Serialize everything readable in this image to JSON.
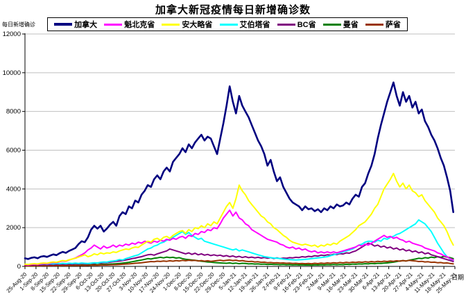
{
  "title": "加拿大新冠疫情每日新增确诊数",
  "axis": {
    "y_title": "每日新增确诊",
    "x_title": "日期"
  },
  "chart_data": {
    "type": "line",
    "title": "加拿大新冠疫情每日新增确诊数",
    "xlabel": "日期",
    "ylabel": "每日新增确诊",
    "ylim": [
      0,
      12000
    ],
    "y_ticks": [
      0,
      2000,
      4000,
      6000,
      8000,
      10000,
      12000
    ],
    "grid": "horizontal-gray",
    "legend_position": "top",
    "gridline_color": "#bfbfbf",
    "axis_color": "#000000",
    "sample_interval_days": 2,
    "total_days": 273,
    "x_tick_labels": [
      "25-Aug-20",
      "1-Sep-20",
      "8-Sep-20",
      "15-Sep-20",
      "22-Sep-20",
      "29-Sep-20",
      "6-Oct-20",
      "13-Oct-20",
      "20-Oct-20",
      "27-Oct-20",
      "3-Nov-20",
      "10-Nov-20",
      "17-Nov-20",
      "24-Nov-20",
      "1-Dec-20",
      "8-Dec-20",
      "15-Dec-20",
      "22-Dec-20",
      "29-Dec-20",
      "5-Jan-21",
      "12-Jan-21",
      "19-Jan-21",
      "26-Jan-21",
      "2-Feb-21",
      "9-Feb-21",
      "16-Feb-21",
      "23-Feb-21",
      "2-Mar-21",
      "9-Mar-21",
      "16-Mar-21",
      "23-Mar-21",
      "30-Mar-21",
      "6-Apr-21",
      "13-Apr-21",
      "20-Apr-21",
      "27-Apr-21",
      "4-May-21",
      "11-May-21",
      "18-May-21",
      "25-May-21"
    ],
    "series": [
      {
        "id": "canada",
        "name": "加拿大",
        "color": "#000080",
        "values": [
          420,
          380,
          440,
          470,
          420,
          500,
          530,
          490,
          560,
          620,
          580,
          680,
          750,
          700,
          800,
          870,
          950,
          1150,
          1300,
          1250,
          1500,
          1900,
          2100,
          1950,
          2100,
          1800,
          1950,
          2150,
          2300,
          2100,
          2600,
          2800,
          2700,
          3100,
          3000,
          3400,
          3300,
          3700,
          3900,
          4200,
          4100,
          4500,
          4700,
          4500,
          4900,
          5100,
          4900,
          5400,
          5600,
          5800,
          6100,
          5900,
          6300,
          6100,
          6400,
          6600,
          6800,
          6500,
          6700,
          6600,
          6200,
          5800,
          6600,
          7400,
          8300,
          9300,
          8500,
          7900,
          8800,
          8300,
          8000,
          7700,
          7300,
          6900,
          6500,
          6200,
          5800,
          5200,
          5500,
          4900,
          4400,
          4600,
          4100,
          3800,
          3500,
          3300,
          3200,
          3100,
          2900,
          3100,
          2950,
          3000,
          2850,
          2950,
          2800,
          3000,
          2900,
          3100,
          3000,
          3200,
          3100,
          3150,
          3300,
          3200,
          3500,
          3700,
          3600,
          4100,
          4300,
          4800,
          5200,
          5800,
          6600,
          7300,
          7900,
          8500,
          9000,
          9500,
          8800,
          8300,
          9000,
          8500,
          8800,
          8200,
          8500,
          7900,
          8100,
          7500,
          7200,
          6800,
          6500,
          6100,
          5600,
          5200,
          4600,
          3900,
          2800
        ]
      },
      {
        "id": "quebec",
        "name": "魁北克省",
        "color": "#ff00ff",
        "values": [
          90,
          75,
          100,
          115,
          95,
          130,
          150,
          135,
          170,
          200,
          190,
          240,
          280,
          260,
          330,
          380,
          430,
          520,
          600,
          700,
          850,
          950,
          1100,
          1000,
          900,
          1050,
          950,
          1000,
          1100,
          1000,
          1100,
          1050,
          1150,
          1100,
          1200,
          1150,
          1250,
          1200,
          1300,
          1250,
          1200,
          1300,
          1250,
          1350,
          1300,
          1400,
          1350,
          1450,
          1400,
          1500,
          1550,
          1450,
          1600,
          1550,
          1700,
          1650,
          1800,
          1750,
          1900,
          1850,
          2000,
          1950,
          2200,
          2500,
          2700,
          2900,
          2600,
          2800,
          2500,
          2400,
          2200,
          2100,
          1900,
          1800,
          1700,
          1600,
          1500,
          1400,
          1350,
          1300,
          1250,
          1150,
          1100,
          1000,
          950,
          1000,
          900,
          950,
          850,
          900,
          800,
          750,
          800,
          700,
          750,
          700,
          750,
          700,
          750,
          700,
          750,
          800,
          850,
          900,
          950,
          1000,
          1100,
          1050,
          1150,
          1100,
          1200,
          1300,
          1400,
          1500,
          1600,
          1500,
          1550,
          1450,
          1500,
          1400,
          1350,
          1250,
          1300,
          1200,
          1150,
          1100,
          1050,
          950,
          900,
          850,
          800,
          700,
          650,
          550,
          500,
          400,
          330
        ]
      },
      {
        "id": "ontario",
        "name": "安大略省",
        "color": "#ffff00",
        "values": [
          110,
          95,
          125,
          140,
          120,
          160,
          175,
          160,
          200,
          230,
          210,
          260,
          300,
          280,
          340,
          380,
          420,
          480,
          540,
          600,
          500,
          550,
          650,
          600,
          700,
          650,
          700,
          680,
          750,
          720,
          800,
          850,
          900,
          870,
          950,
          1000,
          980,
          1100,
          1200,
          1300,
          1250,
          1400,
          1450,
          1350,
          1500,
          1550,
          1450,
          1600,
          1700,
          1800,
          1850,
          1700,
          1900,
          1800,
          2000,
          1950,
          2100,
          2000,
          2200,
          2100,
          2300,
          2200,
          2500,
          2800,
          3100,
          3300,
          3000,
          3500,
          4200,
          3900,
          3700,
          3400,
          3200,
          3000,
          2800,
          2600,
          2500,
          2300,
          2200,
          2000,
          1900,
          1750,
          1600,
          1500,
          1350,
          1250,
          1200,
          1150,
          1100,
          1150,
          1100,
          1050,
          1100,
          1000,
          1100,
          1050,
          1150,
          1100,
          1200,
          1150,
          1300,
          1400,
          1500,
          1600,
          1750,
          1900,
          2100,
          2200,
          2300,
          2500,
          2700,
          3000,
          3200,
          3600,
          4000,
          4250,
          4500,
          4800,
          4400,
          4100,
          4300,
          4000,
          4200,
          3900,
          3800,
          3600,
          3700,
          3400,
          3200,
          3000,
          2800,
          2500,
          2300,
          2100,
          1800,
          1400,
          1100
        ]
      },
      {
        "id": "alberta",
        "name": "艾伯塔省",
        "color": "#00ffff",
        "values": [
          110,
          95,
          120,
          105,
          130,
          115,
          140,
          120,
          145,
          130,
          150,
          135,
          160,
          140,
          165,
          150,
          170,
          155,
          175,
          160,
          150,
          170,
          190,
          180,
          210,
          230,
          220,
          260,
          280,
          300,
          350,
          330,
          400,
          450,
          500,
          550,
          600,
          700,
          800,
          900,
          950,
          1050,
          1100,
          1200,
          1250,
          1350,
          1400,
          1500,
          1600,
          1700,
          1800,
          1650,
          1750,
          1600,
          1500,
          1400,
          1450,
          1300,
          1250,
          1200,
          1150,
          1100,
          1050,
          1000,
          950,
          900,
          850,
          900,
          800,
          850,
          800,
          750,
          700,
          650,
          600,
          550,
          500,
          480,
          450,
          430,
          420,
          400,
          380,
          360,
          350,
          340,
          330,
          340,
          350,
          360,
          380,
          400,
          420,
          440,
          460,
          480,
          500,
          550,
          600,
          650,
          700,
          750,
          800,
          850,
          900,
          1000,
          1100,
          1150,
          1250,
          1300,
          1300,
          1250,
          1350,
          1300,
          1450,
          1400,
          1500,
          1550,
          1650,
          1700,
          1800,
          1900,
          2000,
          2100,
          2200,
          2400,
          2300,
          2200,
          2000,
          1800,
          1500,
          1200,
          950,
          700,
          500,
          380,
          320
        ]
      },
      {
        "id": "bc",
        "name": "BC省",
        "color": "#800080",
        "values": [
          70,
          60,
          80,
          70,
          90,
          75,
          95,
          80,
          100,
          90,
          110,
          95,
          120,
          100,
          130,
          110,
          140,
          120,
          150,
          130,
          140,
          160,
          150,
          180,
          170,
          200,
          190,
          220,
          240,
          260,
          280,
          300,
          330,
          360,
          400,
          430,
          470,
          500,
          550,
          600,
          620,
          580,
          650,
          700,
          750,
          800,
          900,
          850,
          800,
          750,
          700,
          650,
          700,
          620,
          680,
          600,
          650,
          580,
          620,
          560,
          600,
          550,
          580,
          520,
          560,
          500,
          540,
          480,
          520,
          460,
          500,
          450,
          480,
          440,
          470,
          430,
          460,
          420,
          450,
          410,
          440,
          400,
          430,
          420,
          450,
          440,
          470,
          460,
          500,
          480,
          520,
          500,
          550,
          530,
          580,
          560,
          600,
          580,
          630,
          610,
          660,
          640,
          700,
          680,
          750,
          800,
          900,
          1000,
          1100,
          1200,
          1150,
          1050,
          1100,
          1000,
          1050,
          950,
          1000,
          900,
          950,
          850,
          900,
          800,
          850,
          750,
          800,
          700,
          750,
          650,
          700,
          600,
          550,
          500,
          450,
          400,
          350,
          300,
          250
        ]
      },
      {
        "id": "manitoba",
        "name": "曼省",
        "color": "#008000",
        "values": [
          35,
          25,
          40,
          30,
          45,
          35,
          50,
          40,
          55,
          45,
          50,
          40,
          55,
          45,
          60,
          50,
          65,
          55,
          70,
          60,
          70,
          80,
          90,
          85,
          100,
          110,
          105,
          120,
          130,
          140,
          150,
          170,
          190,
          210,
          240,
          270,
          300,
          330,
          360,
          400,
          380,
          420,
          440,
          470,
          440,
          480,
          450,
          470,
          430,
          450,
          400,
          370,
          350,
          330,
          310,
          290,
          270,
          250,
          230,
          220,
          200,
          190,
          180,
          170,
          160,
          180,
          150,
          170,
          140,
          160,
          150,
          130,
          140,
          120,
          130,
          110,
          120,
          100,
          110,
          95,
          100,
          85,
          95,
          80,
          90,
          75,
          85,
          70,
          80,
          70,
          75,
          65,
          80,
          70,
          85,
          75,
          90,
          80,
          95,
          85,
          100,
          90,
          110,
          100,
          120,
          110,
          130,
          120,
          140,
          130,
          150,
          140,
          160,
          150,
          170,
          180,
          200,
          220,
          250,
          280,
          300,
          280,
          320,
          350,
          380,
          420,
          400,
          450,
          430,
          480,
          450,
          500,
          470,
          520,
          480,
          450,
          400
        ]
      },
      {
        "id": "saskatchewan",
        "name": "萨省",
        "color": "#993300",
        "values": [
          25,
          20,
          30,
          25,
          35,
          28,
          38,
          30,
          40,
          32,
          42,
          34,
          45,
          36,
          48,
          38,
          50,
          40,
          52,
          42,
          55,
          60,
          65,
          60,
          70,
          75,
          70,
          80,
          85,
          90,
          100,
          110,
          120,
          130,
          145,
          160,
          175,
          190,
          210,
          230,
          250,
          240,
          270,
          255,
          280,
          260,
          290,
          270,
          300,
          280,
          310,
          290,
          320,
          300,
          310,
          280,
          300,
          270,
          290,
          260,
          280,
          300,
          320,
          290,
          310,
          330,
          300,
          320,
          280,
          300,
          270,
          250,
          260,
          230,
          240,
          210,
          220,
          190,
          200,
          180,
          190,
          170,
          180,
          160,
          170,
          150,
          160,
          145,
          155,
          140,
          150,
          135,
          160,
          145,
          170,
          155,
          180,
          160,
          190,
          170,
          200,
          180,
          210,
          190,
          220,
          200,
          230,
          210,
          240,
          220,
          250,
          230,
          260,
          240,
          270,
          250,
          280,
          260,
          290,
          270,
          300,
          280,
          310,
          290,
          280,
          250,
          260,
          230,
          240,
          210,
          220,
          190,
          200,
          170,
          180,
          150,
          130
        ]
      }
    ]
  }
}
